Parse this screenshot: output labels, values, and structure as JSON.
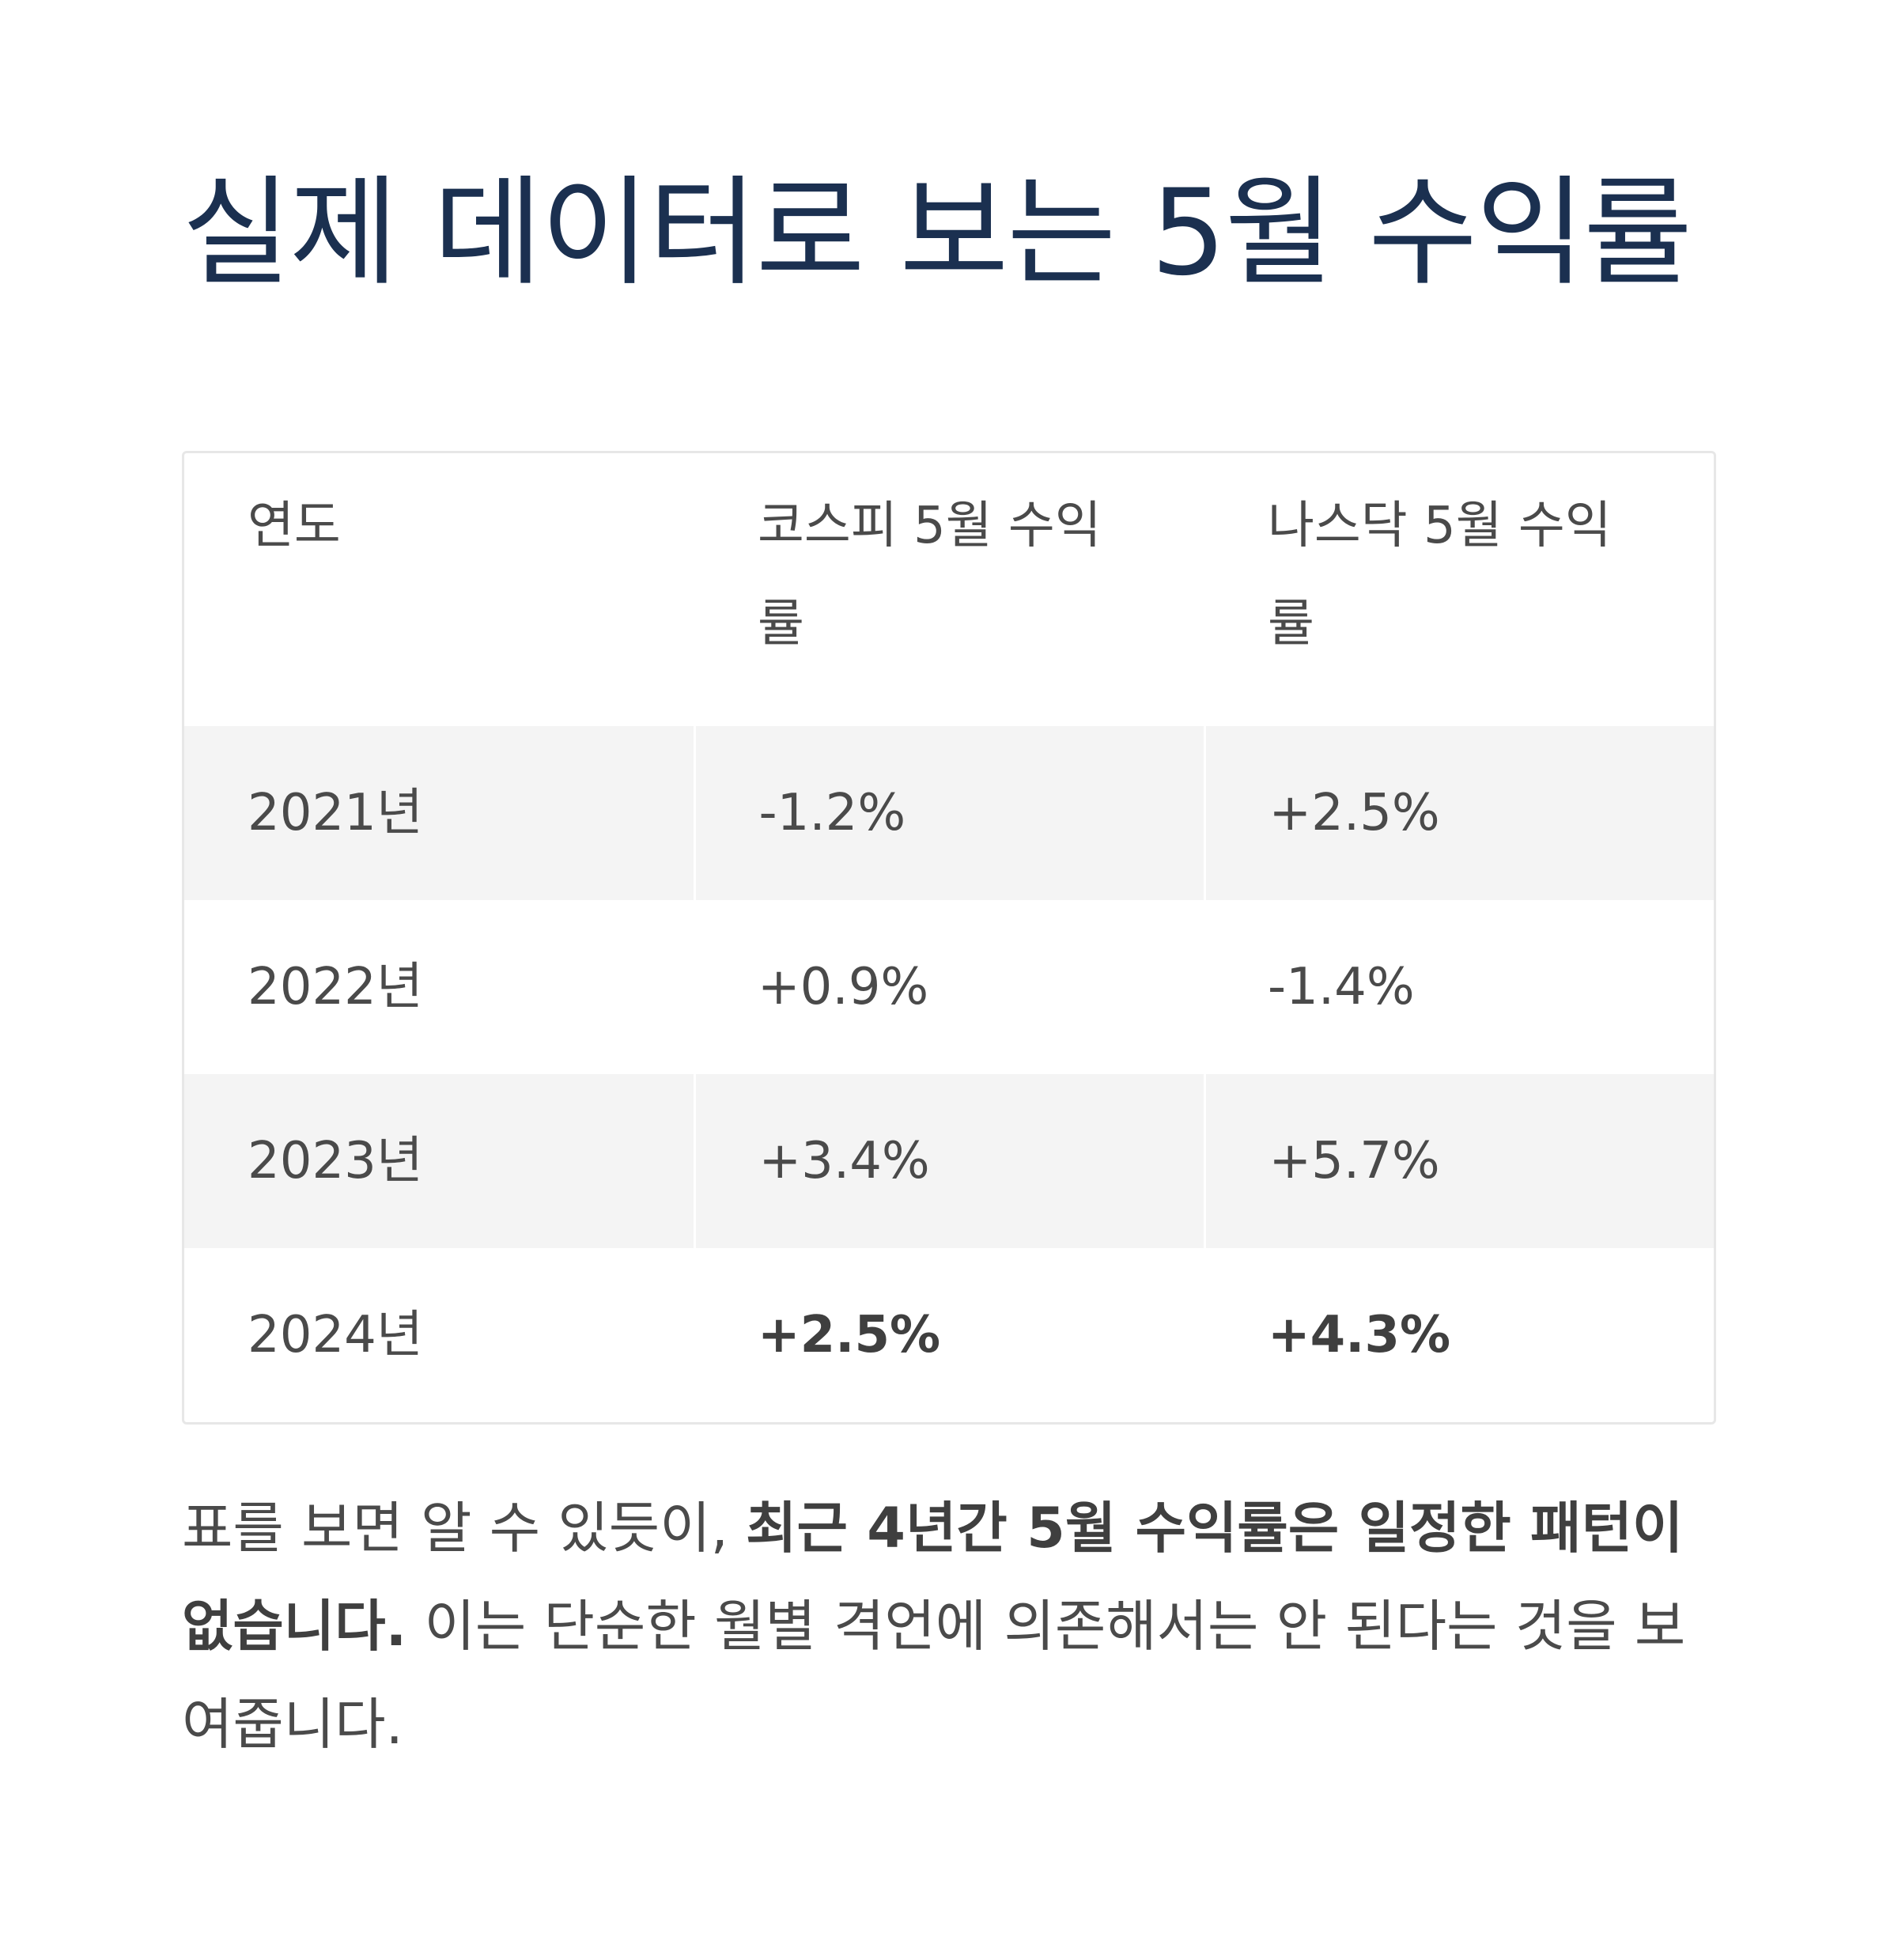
{
  "title": "실제 데이터로 보는 5월 수익률",
  "table": {
    "headers": [
      "연도",
      "코스피 5월 수익률",
      "나스닥 5월 수익률"
    ],
    "rows": [
      {
        "year": "2021년",
        "kospi": "-1.2%",
        "nasdaq": "+2.5%"
      },
      {
        "year": "2022년",
        "kospi": "+0.9%",
        "nasdaq": "-1.4%"
      },
      {
        "year": "2023년",
        "kospi": "+3.4%",
        "nasdaq": "+5.7%"
      },
      {
        "year": "2024년",
        "kospi": "+2.5%",
        "nasdaq": "+4.3%"
      }
    ]
  },
  "summary": {
    "lead": "표를 보면 알 수 있듯이, ",
    "bold": "최근 4년간 5월 수익률은 일정한 패턴이 없습니다.",
    "tail": " 이는 단순한 월별 격언에 의존해서는 안 된다는 것을 보여줍니다."
  }
}
